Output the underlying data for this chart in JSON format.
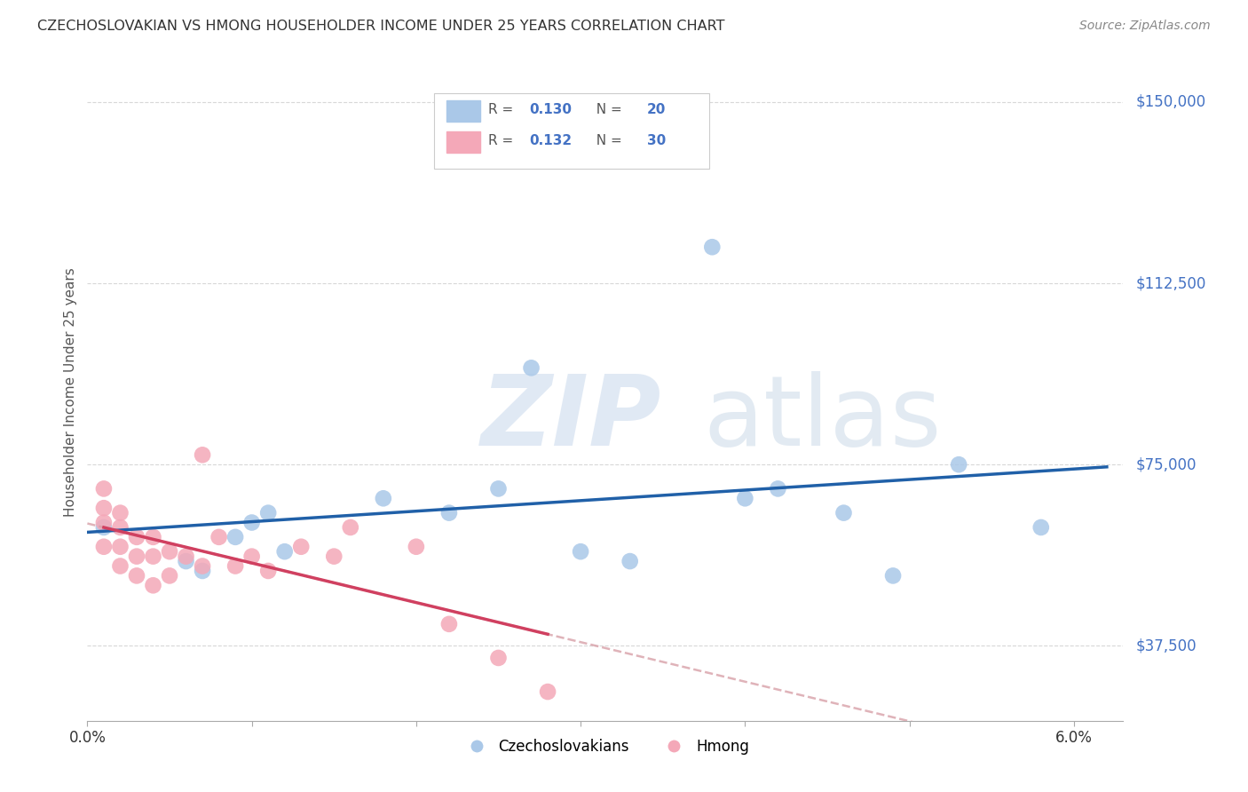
{
  "title": "CZECHOSLOVAKIAN VS HMONG HOUSEHOLDER INCOME UNDER 25 YEARS CORRELATION CHART",
  "source": "Source: ZipAtlas.com",
  "ylabel": "Householder Income Under 25 years",
  "xlim": [
    0.0,
    0.063
  ],
  "ylim": [
    22000,
    158000
  ],
  "yticks": [
    37500,
    75000,
    112500,
    150000
  ],
  "xticks": [
    0.0,
    0.01,
    0.02,
    0.03,
    0.04,
    0.05,
    0.06
  ],
  "background_color": "#ffffff",
  "grid_color": "#d8d8d8",
  "czecho_color": "#aac8e8",
  "hmong_color": "#f4a8b8",
  "czecho_line_color": "#2060a8",
  "hmong_line_color": "#d04060",
  "dashed_line_color": "#d8a0a8",
  "R_czecho": 0.13,
  "N_czecho": 20,
  "R_hmong": 0.132,
  "N_hmong": 30,
  "czecho_points_x": [
    0.001,
    0.006,
    0.007,
    0.009,
    0.01,
    0.011,
    0.012,
    0.018,
    0.022,
    0.025,
    0.027,
    0.03,
    0.033,
    0.038,
    0.04,
    0.042,
    0.046,
    0.049,
    0.053,
    0.058
  ],
  "czecho_points_y": [
    62000,
    55000,
    53000,
    60000,
    63000,
    65000,
    57000,
    68000,
    65000,
    70000,
    95000,
    57000,
    55000,
    120000,
    68000,
    70000,
    65000,
    52000,
    75000,
    62000
  ],
  "hmong_points_x": [
    0.001,
    0.001,
    0.001,
    0.001,
    0.002,
    0.002,
    0.002,
    0.002,
    0.003,
    0.003,
    0.003,
    0.004,
    0.004,
    0.004,
    0.005,
    0.005,
    0.006,
    0.007,
    0.007,
    0.008,
    0.009,
    0.01,
    0.011,
    0.013,
    0.015,
    0.016,
    0.02,
    0.022,
    0.025,
    0.028
  ],
  "hmong_points_y": [
    70000,
    66000,
    63000,
    58000,
    65000,
    62000,
    58000,
    54000,
    60000,
    56000,
    52000,
    60000,
    56000,
    50000,
    57000,
    52000,
    56000,
    77000,
    54000,
    60000,
    54000,
    56000,
    53000,
    58000,
    56000,
    62000,
    58000,
    42000,
    35000,
    28000
  ]
}
